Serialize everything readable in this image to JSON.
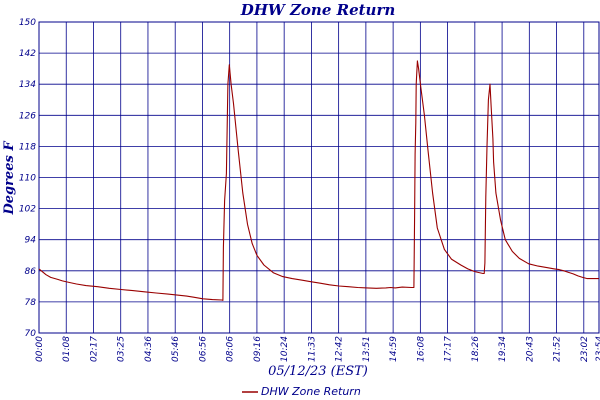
{
  "chart_data": {
    "type": "line",
    "title": "DHW Zone Return",
    "xlabel": "05/12/23 (EST)",
    "ylabel": "Degrees F",
    "ylim": [
      70,
      150
    ],
    "y_ticks": [
      "70",
      "78",
      "86",
      "94",
      "102",
      "110",
      "118",
      "126",
      "134",
      "142",
      "150"
    ],
    "x_tick_labels": [
      "00:00",
      "01:08",
      "02:17",
      "03:25",
      "04:36",
      "05:46",
      "06:56",
      "08:06",
      "09:16",
      "10:24",
      "11:33",
      "12:42",
      "13:51",
      "14:59",
      "16:08",
      "17:17",
      "18:26",
      "19:34",
      "20:43",
      "21:52",
      "23:02",
      "23:54"
    ],
    "grid": true,
    "legend_position": "bottom-center",
    "colors": {
      "series": "#990000",
      "grid": "#00008b",
      "text": "#00008b"
    },
    "series": [
      {
        "name": "DHW Zone Return",
        "x": [
          0,
          0.1,
          0.3,
          0.5,
          0.8,
          1.0,
          1.3,
          1.6,
          2.0,
          2.5,
          3.0,
          3.5,
          4.0,
          4.5,
          5.0,
          5.5,
          6.0,
          6.3,
          6.6,
          7.0,
          7.4,
          7.8,
          7.85,
          7.87,
          7.92,
          8.0,
          8.06,
          8.12,
          8.2,
          8.3,
          8.5,
          8.7,
          8.9,
          9.1,
          9.3,
          9.6,
          10.0,
          10.4,
          10.8,
          11.2,
          11.6,
          12.0,
          12.4,
          12.8,
          13.2,
          13.6,
          14.0,
          14.4,
          14.8,
          15.0,
          15.2,
          15.5,
          15.9,
          16.0,
          16.03,
          16.05,
          16.08,
          16.1,
          16.15,
          16.2,
          16.3,
          16.45,
          16.6,
          16.8,
          17.0,
          17.3,
          17.6,
          18.0,
          18.3,
          18.6,
          18.95,
          19.0,
          19.03,
          19.07,
          19.12,
          19.18,
          19.25,
          19.3,
          19.37,
          19.4,
          19.5,
          19.7,
          19.9,
          20.2,
          20.5,
          20.9,
          21.3,
          21.7,
          22.0,
          22.2,
          22.4,
          22.6,
          22.8,
          23.0,
          23.2,
          23.4,
          23.6,
          23.9
        ],
        "values": [
          86.5,
          86,
          85,
          84.3,
          83.8,
          83.4,
          83,
          82.6,
          82.2,
          81.9,
          81.5,
          81.2,
          80.9,
          80.6,
          80.3,
          80,
          79.7,
          79.5,
          79.2,
          78.8,
          78.6,
          78.5,
          78.4,
          92,
          104,
          111,
          134,
          139,
          134,
          129,
          117,
          106,
          98,
          93,
          90,
          87.5,
          85.5,
          84.5,
          84,
          83.6,
          83.2,
          82.8,
          82.4,
          82.1,
          81.9,
          81.7,
          81.6,
          81.5,
          81.6,
          81.7,
          81.6,
          81.8,
          81.7,
          81.7,
          100,
          116,
          124,
          134,
          140,
          138,
          133,
          126,
          117,
          106,
          97,
          91.5,
          89,
          87.5,
          86.5,
          85.8,
          85.3,
          85.3,
          88,
          105,
          118,
          130,
          134,
          128,
          120,
          114,
          106,
          99,
          94,
          91,
          89.2,
          87.8,
          87.2,
          86.8,
          86.5,
          86.3,
          86,
          85.6,
          85.2,
          84.7,
          84.3,
          84,
          84,
          84
        ]
      }
    ]
  }
}
